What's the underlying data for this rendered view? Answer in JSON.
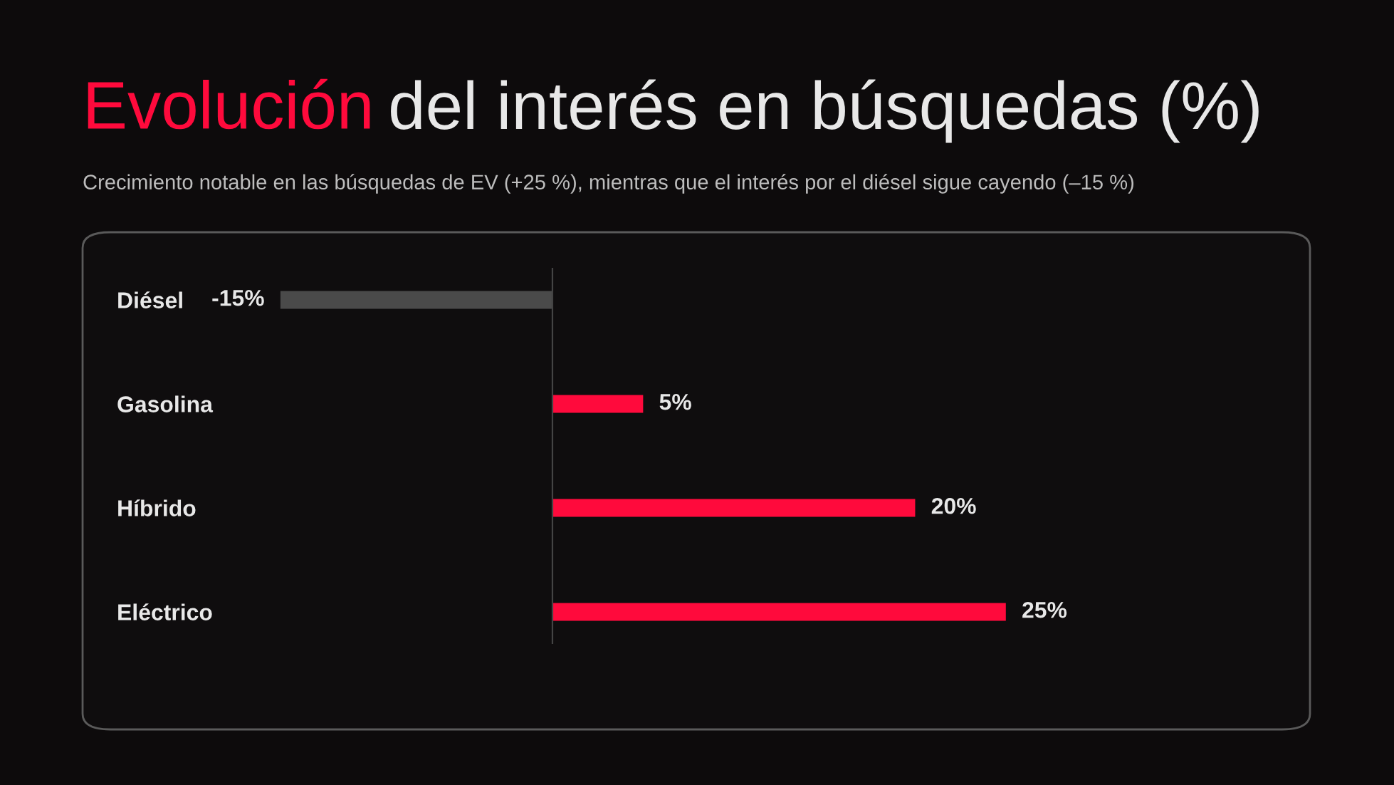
{
  "chart_data": {
    "type": "bar",
    "orientation": "horizontal",
    "title": "Evolución del interés en búsquedas (%)",
    "subtitle": "Crecimiento notable en las búsquedas de EV (+25 %), mientras que el interés por el diésel sigue cayendo (–15 %)",
    "categories": [
      "Diésel",
      "Gasolina",
      "Híbrido",
      "Eléctrico"
    ],
    "values": [
      -15,
      5,
      20,
      25
    ],
    "colors": [
      "#4a4a4a",
      "#ff0a3c",
      "#ff0a3c",
      "#ff0a3c"
    ],
    "value_labels": [
      "-15%",
      "5%",
      "20%",
      "25%"
    ]
  }
}
